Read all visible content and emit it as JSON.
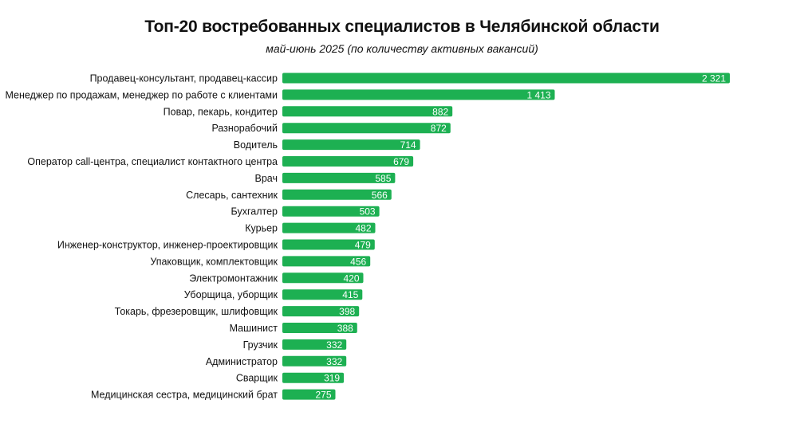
{
  "colors": {
    "bar": "#1db052",
    "bar_label": "#ffffff",
    "category_label": "#111111"
  },
  "chart_data": {
    "type": "bar",
    "orientation": "horizontal",
    "title": "Топ-20 востребованных специалистов в Челябинской области",
    "subtitle": "май-июнь 2025 (по количеству активных вакансий)",
    "xlabel": "",
    "ylabel": "",
    "xlim": [
      0,
      2321
    ],
    "grid": false,
    "legend": "none",
    "categories": [
      "Продавец-консультант, продавец-кассир",
      "Менеджер по продажам, менеджер по работе с клиентами",
      "Повар, пекарь, кондитер",
      "Разнорабочий",
      "Водитель",
      "Оператор call-центра, специалист контактного центра",
      "Врач",
      "Слесарь, сантехник",
      "Бухгалтер",
      "Курьер",
      "Инженер-конструктор, инженер-проектировщик",
      "Упаковщик, комплектовщик",
      "Электромонтажник",
      "Уборщица, уборщик",
      "Токарь, фрезеровщик, шлифовщик",
      "Машинист",
      "Грузчик",
      "Администратор",
      "Сварщик",
      "Медицинская сестра, медицинский брат"
    ],
    "values": [
      2321,
      1413,
      882,
      872,
      714,
      679,
      585,
      566,
      503,
      482,
      479,
      456,
      420,
      415,
      398,
      388,
      332,
      332,
      319,
      275
    ],
    "value_labels": [
      "2 321",
      "1 413",
      "882",
      "872",
      "714",
      "679",
      "585",
      "566",
      "503",
      "482",
      "479",
      "456",
      "420",
      "415",
      "398",
      "388",
      "332",
      "332",
      "319",
      "275"
    ]
  }
}
